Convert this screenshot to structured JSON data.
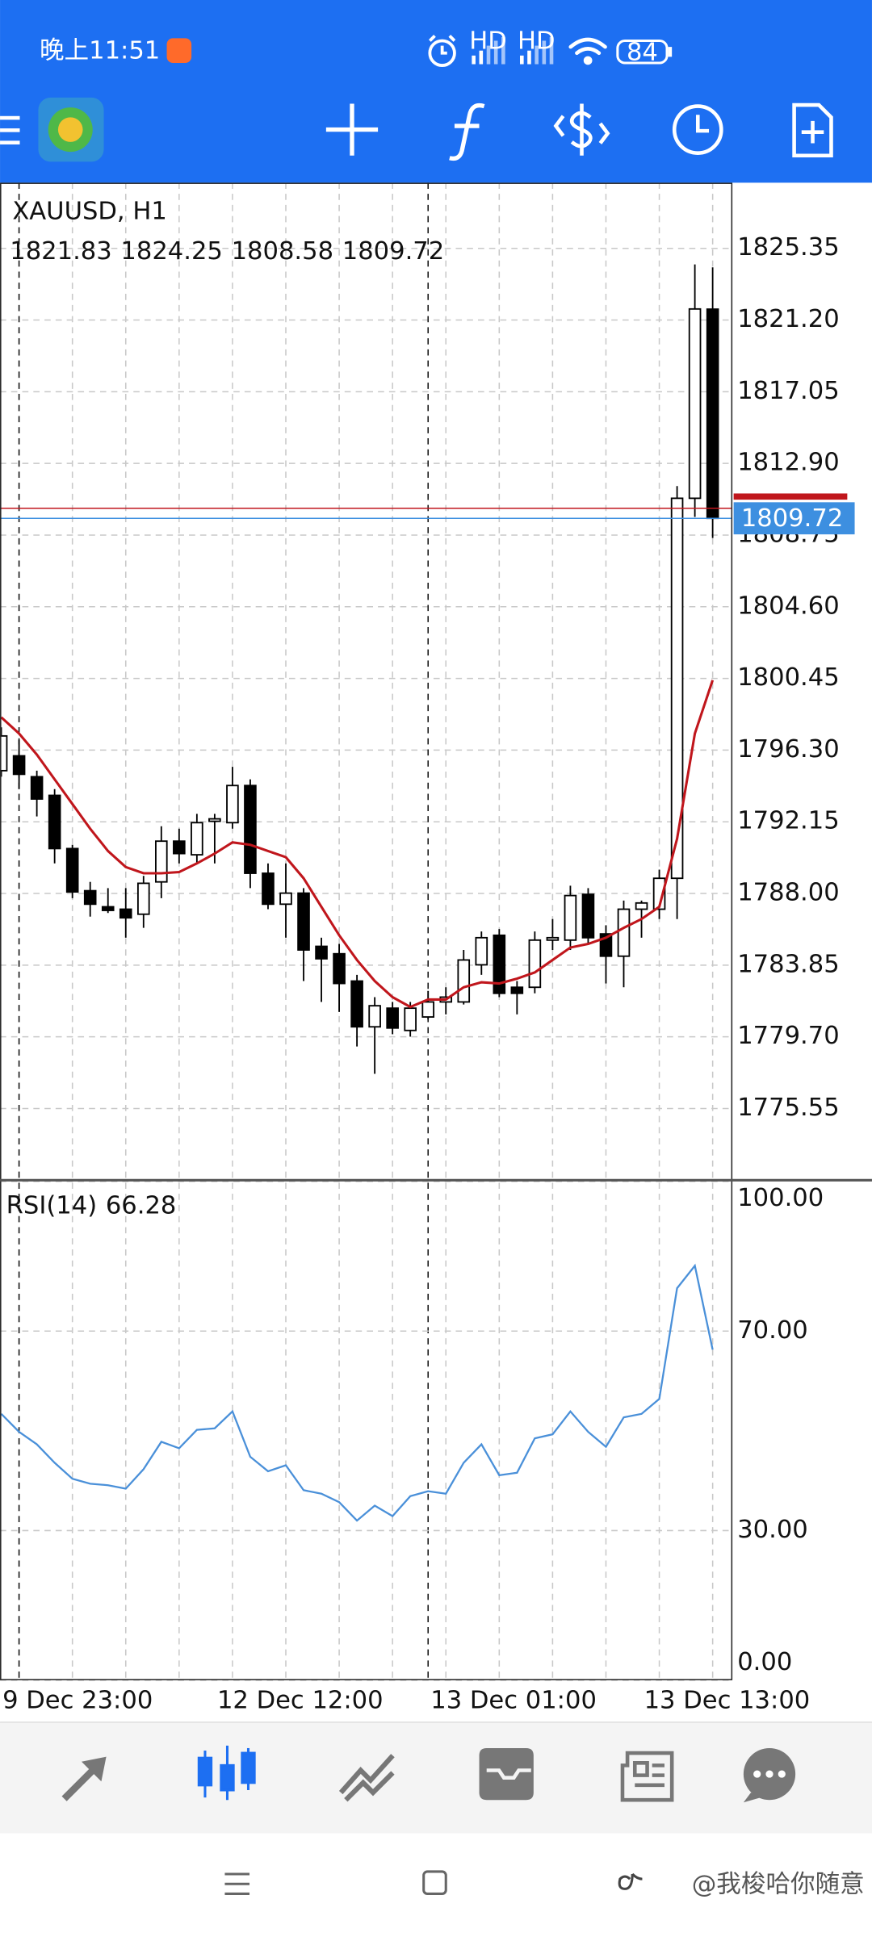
{
  "status_bar": {
    "time": "晚上11:51",
    "network_labels": [
      "HD",
      "HD"
    ],
    "battery": "84"
  },
  "chart_data": [
    {
      "type": "candlestick",
      "title": "XAUUSD, H1",
      "categories": [
        null,
        "9 Dec 23:00",
        null,
        null,
        null,
        null,
        null,
        null,
        null,
        null,
        null,
        null,
        "12 Dec 12:00",
        null,
        null,
        null,
        null,
        null,
        null,
        null,
        null,
        null,
        null,
        null,
        "13 Dec 01:00",
        null,
        null,
        null,
        null,
        null,
        null,
        null,
        null,
        null,
        null,
        null,
        "13 Dec 13:00",
        null,
        null,
        null,
        null
      ],
      "open": [
        1795.11,
        1795.97,
        1794.76,
        1793.68,
        1790.6,
        1788.16,
        1787.23,
        1787.09,
        1786.8,
        1788.67,
        1791.03,
        1790.24,
        1792.18,
        1792.1,
        1794.25,
        1789.17,
        1787.38,
        1788.02,
        1784.94,
        1784.51,
        1782.93,
        1780.28,
        1781.36,
        1780.07,
        1780.85,
        1781.72,
        1781.72,
        1783.87,
        1785.58,
        1782.57,
        1782.57,
        1785.3,
        1785.3,
        1787.95,
        1785.66,
        1784.37,
        1787.09,
        1787.09,
        1788.88,
        1810.88,
        1821.83
      ],
      "high": [
        1797.62,
        1796.9,
        1795.11,
        1794.04,
        1790.82,
        1788.67,
        1788.31,
        1788.31,
        1789.02,
        1791.89,
        1791.75,
        1792.61,
        1792.61,
        1795.33,
        1794.61,
        1789.74,
        1789.74,
        1788.31,
        1785.44,
        1785.08,
        1783.29,
        1782.0,
        1781.72,
        1781.72,
        1782.36,
        1782.57,
        1784.73,
        1785.8,
        1785.94,
        1782.93,
        1785.8,
        1786.52,
        1788.45,
        1788.31,
        1786.16,
        1787.59,
        1787.59,
        1789.38,
        1811.59,
        1824.42,
        1824.25
      ],
      "low": [
        1794.76,
        1794.04,
        1792.46,
        1789.74,
        1787.73,
        1786.66,
        1786.87,
        1785.44,
        1786.01,
        1787.73,
        1789.74,
        1789.74,
        1789.74,
        1791.75,
        1788.31,
        1787.09,
        1785.44,
        1782.93,
        1781.72,
        1781.14,
        1779.14,
        1777.56,
        1779.85,
        1779.71,
        1780.71,
        1781.0,
        1781.57,
        1783.29,
        1782.0,
        1781.0,
        1782.22,
        1784.73,
        1784.73,
        1785.08,
        1782.79,
        1782.57,
        1785.44,
        1786.52,
        1786.52,
        1809.8,
        1808.58
      ],
      "close": [
        1797.12,
        1794.9,
        1793.47,
        1790.6,
        1788.09,
        1787.38,
        1787.02,
        1786.59,
        1788.59,
        1791.03,
        1790.31,
        1792.1,
        1792.32,
        1794.25,
        1789.17,
        1787.38,
        1788.02,
        1784.73,
        1784.22,
        1782.79,
        1780.28,
        1781.5,
        1780.21,
        1781.36,
        1781.72,
        1782.0,
        1784.15,
        1785.44,
        1782.22,
        1782.22,
        1785.3,
        1785.44,
        1787.88,
        1785.44,
        1784.37,
        1787.09,
        1787.45,
        1788.88,
        1810.88,
        1821.84,
        1809.72
      ],
      "up_color": "#ffffff",
      "down_color": "#000000",
      "moving_average": {
        "color": "#c0161c",
        "values": [
          1798.2,
          1797.26,
          1796.04,
          1794.61,
          1793.18,
          1791.75,
          1790.46,
          1789.53,
          1789.17,
          1789.17,
          1789.24,
          1789.74,
          1790.31,
          1790.96,
          1790.82,
          1790.46,
          1790.1,
          1788.88,
          1787.23,
          1785.58,
          1784.15,
          1782.93,
          1782.0,
          1781.43,
          1781.86,
          1781.86,
          1782.57,
          1782.86,
          1782.79,
          1783.07,
          1783.43,
          1784.15,
          1784.87,
          1785.08,
          1785.44,
          1786.01,
          1786.52,
          1787.23,
          1791.17,
          1797.26,
          1800.35
        ]
      },
      "ask": 1810.3,
      "ask_color": "#c0161c",
      "bid_color": "#3d8fe0",
      "ylim": [
        1771.47,
        1829.15
      ],
      "yticks": [
        1825.35,
        {
          "value": 1821.2,
          "label": "1821.20"
        },
        1817.05,
        {
          "value": 1812.9,
          "label": "1812.90"
        },
        1808.75,
        {
          "value": 1804.6,
          "label": "1804.60"
        },
        1800.45,
        {
          "value": 1796.3,
          "label": "1796.30"
        },
        1792.15,
        {
          "value": 1788,
          "label": "1788.00"
        },
        1783.85,
        {
          "value": 1779.7,
          "label": "1779.70"
        },
        1775.55
      ],
      "grid": true
    },
    {
      "type": "line",
      "title": "RSI(14)",
      "color": "#4a90d9",
      "values": [
        53.4,
        49.8,
        47.3,
        43.6,
        40.4,
        39.4,
        39.1,
        38.4,
        42.3,
        47.8,
        46.5,
        50.2,
        50.5,
        53.9,
        44.8,
        41.9,
        43.1,
        38.1,
        37.4,
        35.7,
        32.0,
        35.0,
        32.9,
        36.9,
        37.9,
        37.4,
        43.6,
        47.3,
        41.1,
        41.6,
        48.5,
        49.3,
        53.9,
        49.8,
        46.8,
        52.7,
        53.4,
        56.4,
        78.6,
        83.1,
        66.28
      ],
      "ylim": [
        0,
        100
      ],
      "yticks": [
        {
          "value": 100,
          "label": "100.00"
        },
        {
          "value": 70,
          "label": "70.00"
        },
        {
          "value": 30,
          "label": "30.00"
        },
        {
          "value": 0,
          "label": "0.00"
        }
      ],
      "grid": true
    }
  ],
  "watermark": "@我梭哈你随意"
}
